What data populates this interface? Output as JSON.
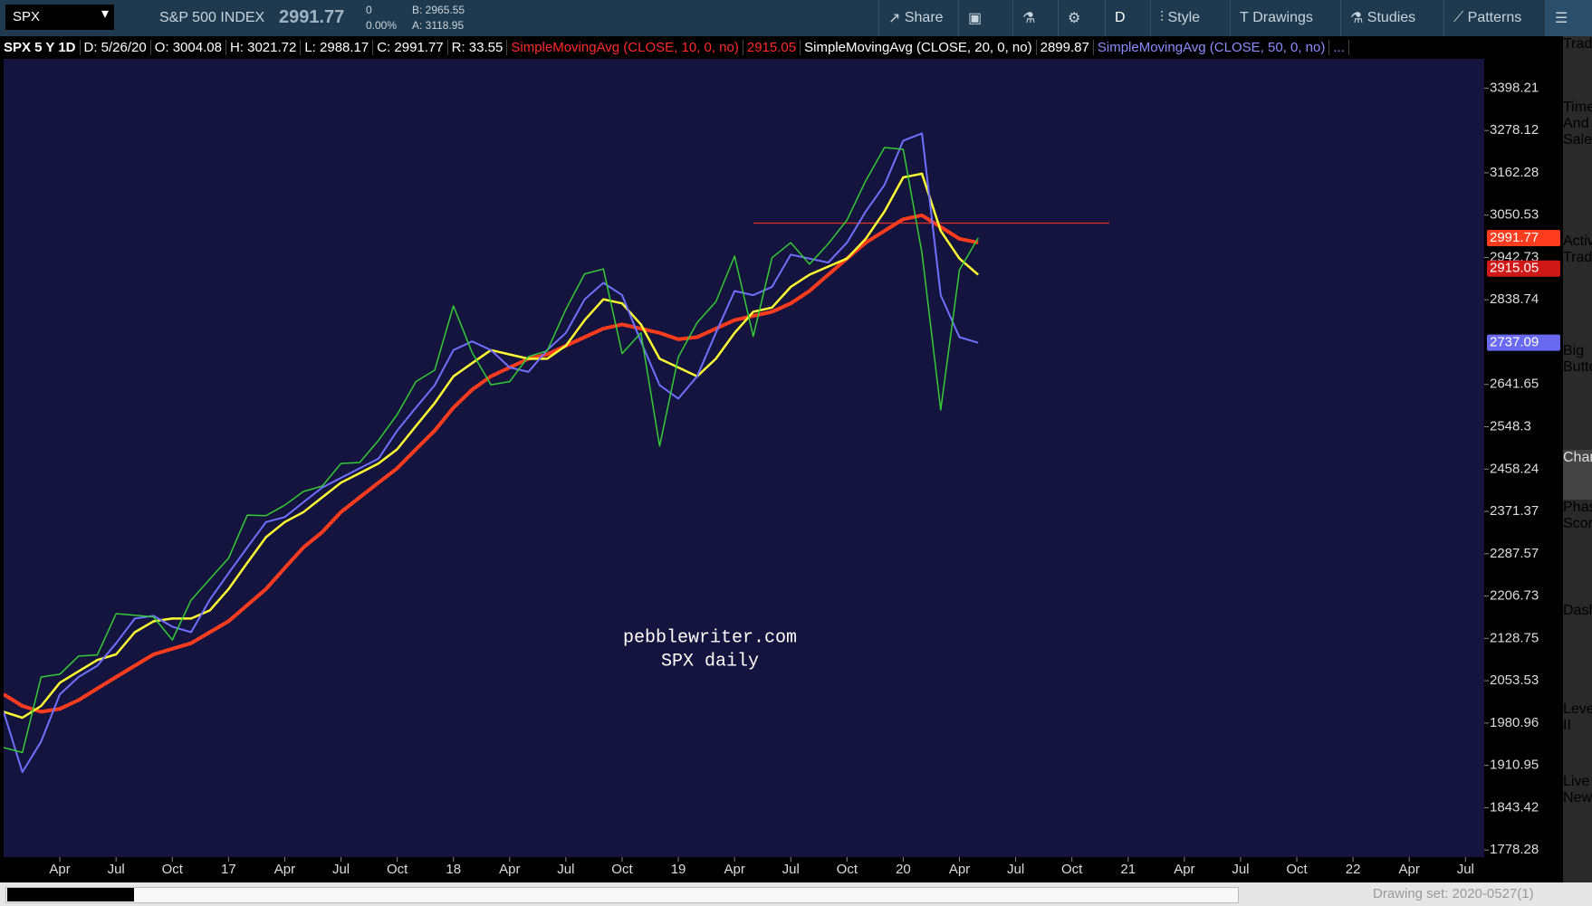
{
  "toolbar": {
    "symbol": "SPX",
    "description": "S&P 500 INDEX",
    "last": "2991.77",
    "change": "0",
    "change_pct": "0.00%",
    "bid": "B: 2965.55",
    "ask": "A: 3118.95",
    "buttons": [
      "Share",
      "D",
      "Style",
      "Drawings",
      "Studies",
      "Patterns"
    ]
  },
  "info_bar": {
    "items": [
      "SPX 5 Y 1D",
      "D: 5/26/20",
      "O: 3004.08",
      "H: 3021.72",
      "L: 2988.17",
      "C: 2991.77",
      "R: 33.55"
    ],
    "studies": [
      {
        "label": "SimpleMovingAvg (CLOSE, 10, 0, no)",
        "value": "2915.05",
        "color": "#ff2a2a"
      },
      {
        "label": "SimpleMovingAvg (CLOSE, 20, 0, no)",
        "value": "2899.87",
        "color": "#ffffff"
      },
      {
        "label": "SimpleMovingAvg (CLOSE, 50, 0, no)",
        "value": "...",
        "color": "#8c8cff"
      }
    ]
  },
  "chart_data": {
    "type": "line",
    "log": true,
    "grid": false,
    "background": "#14143f",
    "annotations": [
      "pebblewriter.com",
      "SPX daily"
    ],
    "ylim": [
      1767.6,
      3484
    ],
    "yticks": [
      3398.21,
      3278.12,
      3162.28,
      3050.53,
      2942.73,
      2838.74,
      2641.65,
      2548.3,
      2458.24,
      2371.37,
      2287.57,
      2206.73,
      2128.75,
      2053.53,
      1980.96,
      1910.95,
      1843.42,
      1778.28
    ],
    "xlim": [
      "2016-01",
      "2022-08"
    ],
    "xticks": [
      {
        "value": "2016-04",
        "label": "Apr"
      },
      {
        "value": "2016-07",
        "label": "Jul"
      },
      {
        "value": "2016-10",
        "label": "Oct"
      },
      {
        "value": "2017-01",
        "label": "17"
      },
      {
        "value": "2017-04",
        "label": "Apr"
      },
      {
        "value": "2017-07",
        "label": "Jul"
      },
      {
        "value": "2017-10",
        "label": "Oct"
      },
      {
        "value": "2018-01",
        "label": "18"
      },
      {
        "value": "2018-04",
        "label": "Apr"
      },
      {
        "value": "2018-07",
        "label": "Jul"
      },
      {
        "value": "2018-10",
        "label": "Oct"
      },
      {
        "value": "2019-01",
        "label": "19"
      },
      {
        "value": "2019-04",
        "label": "Apr"
      },
      {
        "value": "2019-07",
        "label": "Jul"
      },
      {
        "value": "2019-10",
        "label": "Oct"
      },
      {
        "value": "2020-01",
        "label": "20"
      },
      {
        "value": "2020-04",
        "label": "Apr"
      },
      {
        "value": "2020-07",
        "label": "Jul"
      },
      {
        "value": "2020-10",
        "label": "Oct"
      },
      {
        "value": "2021-01",
        "label": "21"
      },
      {
        "value": "2021-04",
        "label": "Apr"
      },
      {
        "value": "2021-07",
        "label": "Jul"
      },
      {
        "value": "2021-10",
        "label": "Oct"
      },
      {
        "value": "2022-01",
        "label": "22"
      },
      {
        "value": "2022-04",
        "label": "Apr"
      },
      {
        "value": "2022-07",
        "label": "Jul"
      }
    ],
    "x": [
      "2016-01",
      "2016-02",
      "2016-03",
      "2016-04",
      "2016-05",
      "2016-06",
      "2016-07",
      "2016-08",
      "2016-09",
      "2016-10",
      "2016-11",
      "2016-12",
      "2017-01",
      "2017-02",
      "2017-03",
      "2017-04",
      "2017-05",
      "2017-06",
      "2017-07",
      "2017-08",
      "2017-09",
      "2017-10",
      "2017-11",
      "2017-12",
      "2018-01",
      "2018-02",
      "2018-03",
      "2018-04",
      "2018-05",
      "2018-06",
      "2018-07",
      "2018-08",
      "2018-09",
      "2018-10",
      "2018-11",
      "2018-12",
      "2019-01",
      "2019-02",
      "2019-03",
      "2019-04",
      "2019-05",
      "2019-06",
      "2019-07",
      "2019-08",
      "2019-09",
      "2019-10",
      "2019-11",
      "2019-12",
      "2020-01",
      "2020-02",
      "2020-03",
      "2020-04",
      "2020-05"
    ],
    "series": [
      {
        "color": "#ff3c1e",
        "width": 4,
        "values": [
          2030,
          2010,
          2000,
          2005,
          2020,
          2040,
          2060,
          2080,
          2100,
          2110,
          2120,
          2140,
          2160,
          2190,
          2220,
          2260,
          2300,
          2330,
          2370,
          2400,
          2430,
          2460,
          2500,
          2540,
          2590,
          2630,
          2660,
          2680,
          2700,
          2710,
          2730,
          2750,
          2770,
          2780,
          2770,
          2760,
          2745,
          2750,
          2770,
          2790,
          2800,
          2810,
          2830,
          2860,
          2900,
          2940,
          2980,
          3010,
          3040,
          3050,
          3020,
          2990,
          2980
        ]
      },
      {
        "color": "#ffff33",
        "width": 2.5,
        "values": [
          2000,
          1990,
          2010,
          2050,
          2070,
          2090,
          2100,
          2140,
          2160,
          2165,
          2165,
          2180,
          2220,
          2270,
          2320,
          2350,
          2370,
          2400,
          2430,
          2450,
          2470,
          2500,
          2550,
          2600,
          2660,
          2690,
          2720,
          2710,
          2700,
          2700,
          2730,
          2790,
          2840,
          2830,
          2780,
          2700,
          2680,
          2660,
          2700,
          2760,
          2810,
          2820,
          2870,
          2900,
          2920,
          2940,
          2990,
          3060,
          3150,
          3160,
          3010,
          2940,
          2900
        ]
      },
      {
        "color": "#7070ff",
        "width": 2,
        "values": [
          2000,
          1900,
          1950,
          2030,
          2060,
          2080,
          2120,
          2165,
          2170,
          2150,
          2140,
          2200,
          2250,
          2300,
          2350,
          2360,
          2390,
          2420,
          2440,
          2460,
          2480,
          2540,
          2590,
          2640,
          2720,
          2740,
          2720,
          2680,
          2670,
          2720,
          2760,
          2840,
          2880,
          2850,
          2740,
          2640,
          2610,
          2660,
          2760,
          2860,
          2850,
          2870,
          2950,
          2940,
          2930,
          2980,
          3060,
          3130,
          3250,
          3270,
          2850,
          2750,
          2737
        ]
      },
      {
        "color": "#33cc33",
        "width": 1.5,
        "values": [
          1940,
          1932,
          2060,
          2065,
          2097,
          2099,
          2174,
          2171,
          2168,
          2126,
          2199,
          2239,
          2279,
          2364,
          2363,
          2384,
          2412,
          2423,
          2470,
          2472,
          2519,
          2575,
          2648,
          2674,
          2824,
          2714,
          2641,
          2648,
          2705,
          2718,
          2816,
          2902,
          2914,
          2712,
          2760,
          2507,
          2704,
          2784,
          2834,
          2946,
          2752,
          2942,
          2980,
          2926,
          2977,
          3038,
          3141,
          3231,
          3226,
          2954,
          2585,
          2912,
          2992
        ]
      }
    ],
    "hline": {
      "value": 3030,
      "from": "2019-05",
      "to": "2020-12",
      "color": "#e03020"
    },
    "price_badges": [
      {
        "value": 2991.77,
        "color": "#ff3c1e"
      },
      {
        "value": 2915.05,
        "color": "#d01818"
      },
      {
        "value": 2737.09,
        "color": "#6a6af0"
      }
    ]
  },
  "side_tabs": [
    "Trade",
    "Times And Sales",
    "Active Trader",
    "Big Buttons",
    "Chart",
    "Phase Scores",
    "Dashboard",
    "Level II",
    "Live News"
  ],
  "status": {
    "drawing_set": "Drawing set: 2020-0527(1)"
  }
}
